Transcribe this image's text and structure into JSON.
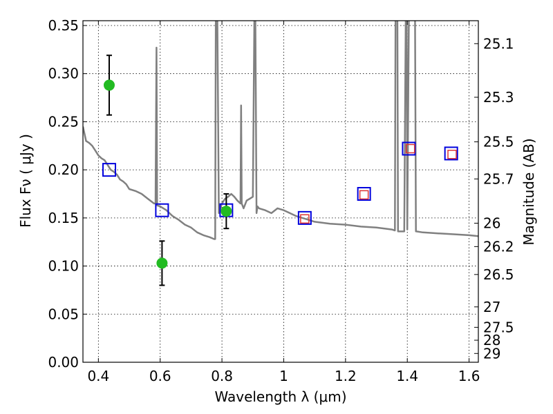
{
  "chart_data": {
    "type": "scatter",
    "xlabel": "Wavelength  λ (μm)",
    "ylabel": "Flux  Fν  ( μJy )",
    "y2label": "Magnitude (AB)",
    "xlim": [
      0.35,
      1.63
    ],
    "ylim": [
      0.0,
      0.355
    ],
    "grid": true,
    "x_ticks": [
      0.4,
      0.6,
      0.8,
      1.0,
      1.2,
      1.4,
      1.6
    ],
    "x_tick_labels": [
      "0.4",
      "0.6",
      "0.8",
      "1",
      "1.2",
      "1.4",
      "1.6"
    ],
    "y_ticks": [
      0.0,
      0.05,
      0.1,
      0.15,
      0.2,
      0.25,
      0.3,
      0.35
    ],
    "y_tick_labels": [
      "0.00",
      "0.05",
      "0.10",
      "0.15",
      "0.20",
      "0.25",
      "0.30",
      "0.35"
    ],
    "y2_ticks": [
      {
        "mag": 25.1,
        "label": "25.1"
      },
      {
        "mag": 25.3,
        "label": "25.3"
      },
      {
        "mag": 25.5,
        "label": "25.5"
      },
      {
        "mag": 25.7,
        "label": "25.7"
      },
      {
        "mag": 26.0,
        "label": "26"
      },
      {
        "mag": 26.2,
        "label": "26.2"
      },
      {
        "mag": 26.5,
        "label": "26.5"
      },
      {
        "mag": 27.0,
        "label": "27"
      },
      {
        "mag": 27.5,
        "label": "27.5"
      },
      {
        "mag": 28.0,
        "label": "28"
      },
      {
        "mag": 29.0,
        "label": "29"
      }
    ],
    "series": [
      {
        "type": "line",
        "color": "#808080",
        "x": [
          0.35,
          0.36,
          0.37,
          0.38,
          0.39,
          0.4,
          0.41,
          0.42,
          0.43,
          0.44,
          0.45,
          0.46,
          0.47,
          0.48,
          0.49,
          0.5,
          0.52,
          0.54,
          0.56,
          0.58,
          0.585,
          0.588,
          0.59,
          0.6,
          0.62,
          0.64,
          0.66,
          0.68,
          0.7,
          0.72,
          0.74,
          0.76,
          0.775,
          0.778,
          0.78,
          0.785,
          0.79,
          0.8,
          0.81,
          0.82,
          0.83,
          0.84,
          0.85,
          0.86,
          0.862,
          0.864,
          0.87,
          0.88,
          0.89,
          0.9,
          0.905,
          0.908,
          0.912,
          0.915,
          0.92,
          0.94,
          0.96,
          0.98,
          1.0,
          1.02,
          1.04,
          1.06,
          1.08,
          1.1,
          1.15,
          1.2,
          1.25,
          1.3,
          1.35,
          1.36,
          1.362,
          1.365,
          1.368,
          1.37,
          1.38,
          1.39,
          1.395,
          1.398,
          1.4,
          1.405,
          1.41,
          1.42,
          1.425,
          1.428,
          1.43,
          1.45,
          1.5,
          1.55,
          1.6,
          1.63
        ],
        "y": [
          0.245,
          0.23,
          0.228,
          0.225,
          0.22,
          0.215,
          0.212,
          0.21,
          0.205,
          0.2,
          0.198,
          0.195,
          0.19,
          0.188,
          0.185,
          0.18,
          0.178,
          0.175,
          0.17,
          0.165,
          0.165,
          0.327,
          0.163,
          0.162,
          0.158,
          0.152,
          0.148,
          0.143,
          0.14,
          0.135,
          0.132,
          0.13,
          0.128,
          0.128,
          0.36,
          0.36,
          0.155,
          0.165,
          0.17,
          0.172,
          0.175,
          0.172,
          0.168,
          0.165,
          0.267,
          0.165,
          0.16,
          0.168,
          0.17,
          0.172,
          0.36,
          0.36,
          0.155,
          0.162,
          0.16,
          0.158,
          0.155,
          0.16,
          0.158,
          0.155,
          0.152,
          0.15,
          0.148,
          0.146,
          0.144,
          0.143,
          0.141,
          0.14,
          0.138,
          0.137,
          0.36,
          0.36,
          0.36,
          0.136,
          0.136,
          0.136,
          0.36,
          0.36,
          0.138,
          0.36,
          0.36,
          0.36,
          0.36,
          0.136,
          0.136,
          0.135,
          0.134,
          0.133,
          0.132,
          0.131
        ]
      },
      {
        "type": "scatter",
        "marker": "square",
        "color": "#0000dd",
        "x": [
          0.435,
          0.606,
          0.814,
          1.068,
          1.26,
          1.405,
          1.542
        ],
        "y": [
          0.2,
          0.158,
          0.158,
          0.15,
          0.175,
          0.222,
          0.217
        ]
      },
      {
        "type": "scatter",
        "marker": "square-small",
        "color": "#dd3333",
        "x": [
          1.068,
          1.26,
          1.41,
          1.545
        ],
        "y": [
          0.149,
          0.174,
          0.222,
          0.216
        ]
      },
      {
        "type": "scatter",
        "marker": "circle",
        "color": "#22bb22",
        "x": [
          0.435,
          0.606,
          0.814
        ],
        "y": [
          0.288,
          0.103,
          0.157
        ],
        "yerr": [
          0.031,
          0.023,
          0.018
        ]
      }
    ]
  }
}
